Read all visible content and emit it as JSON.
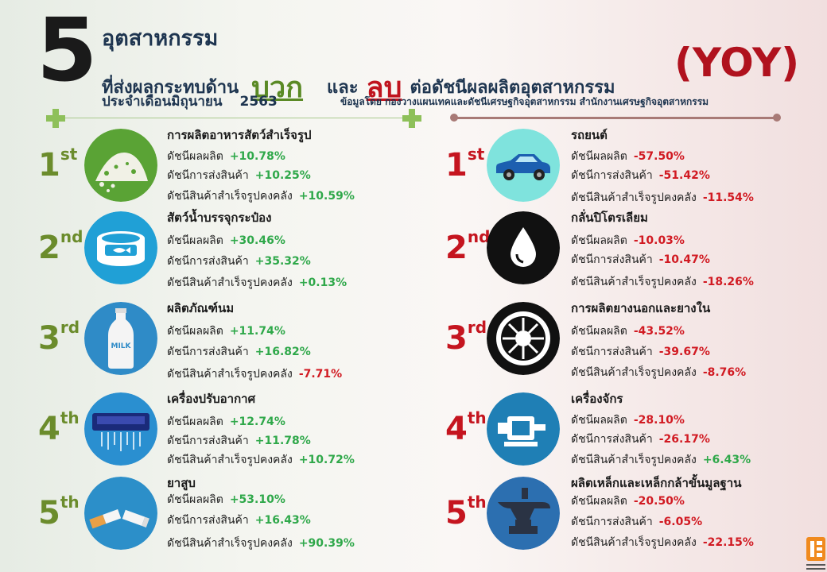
{
  "header": {
    "number": "5",
    "title_line1": "อุตสาหกรรม",
    "title_line2_pre": "ที่ส่งผลกระทบด้าน",
    "positive_word": "บวก",
    "and_word": "และ",
    "negative_word": "ลบ",
    "title_line2_post": "ต่อดัชนีผลผลิตอุตสาหกรรม",
    "month_line": "ประจำเดือนมิถุนายน",
    "year": "2563",
    "yoy": "(YOY)",
    "source": "ข้อมูลโดย  กองวางแผนเทคและดัชนีเศรษฐกิจอุตสาหกรรม สำนักงานเศรษฐกิจอุตสาหกรรม"
  },
  "positive": [
    {
      "rank": "1",
      "suffix": "st",
      "icon": "powder-food-icon",
      "title": "การผลิตอาหารสัตว์สำเร็จรูป",
      "lines": [
        {
          "label": "ดัชนีผลผลิต",
          "value": "+10.78%"
        },
        {
          "label": "ดัชนีการส่งสินค้า",
          "value": "+10.25%"
        },
        {
          "label": "ดัชนีสินค้าสำเร็จรูปคงคลัง",
          "value": "+10.59%"
        }
      ]
    },
    {
      "rank": "2",
      "suffix": "nd",
      "icon": "canned-fish-icon",
      "title": "สัตว์น้ำบรรจุกระป๋อง",
      "lines": [
        {
          "label": "ดัชนีผลผลิต",
          "value": "+30.46%"
        },
        {
          "label": "ดัชนีการส่งสินค้า",
          "value": "+35.32%"
        },
        {
          "label": "ดัชนีสินค้าสำเร็จรูปคงคลัง",
          "value": "+0.13%"
        }
      ]
    },
    {
      "rank": "3",
      "suffix": "rd",
      "icon": "milk-bottle-icon",
      "title": "ผลิตภัณฑ์นม",
      "lines": [
        {
          "label": "ดัชนีผลผลิต",
          "value": "+11.74%"
        },
        {
          "label": "ดัชนีการส่งสินค้า",
          "value": "+16.82%"
        },
        {
          "label": "ดัชนีสินค้าสำเร็จรูปคงคลัง",
          "value": "-7.71%"
        }
      ]
    },
    {
      "rank": "4",
      "suffix": "th",
      "icon": "air-conditioner-icon",
      "title": "เครื่องปรับอากาศ",
      "lines": [
        {
          "label": "ดัชนีผลผลิต",
          "value": "+12.74%"
        },
        {
          "label": "ดัชนีการส่งสินค้า",
          "value": "+11.78%"
        },
        {
          "label": "ดัชนีสินค้าสำเร็จรูปคงคลัง",
          "value": "+10.72%"
        }
      ]
    },
    {
      "rank": "5",
      "suffix": "th",
      "icon": "cigarette-icon",
      "title": "ยาสูบ",
      "lines": [
        {
          "label": "ดัชนีผลผลิต",
          "value": "+53.10%"
        },
        {
          "label": "ดัชนีการส่งสินค้า",
          "value": "+16.43%"
        },
        {
          "label": "ดัชนีสินค้าสำเร็จรูปคงคลัง",
          "value": "+90.39%"
        }
      ]
    }
  ],
  "negative": [
    {
      "rank": "1",
      "suffix": "st",
      "icon": "car-icon",
      "title": "รถยนต์",
      "lines": [
        {
          "label": "ดัชนีผลผลิต",
          "value": "-57.50%"
        },
        {
          "label": "ดัชนีการส่งสินค้า",
          "value": "-51.42%"
        },
        {
          "label": "ดัชนีสินค้าสำเร็จรูปคงคลัง",
          "value": "-11.54%"
        }
      ]
    },
    {
      "rank": "2",
      "suffix": "nd",
      "icon": "oil-drop-icon",
      "title": "กลั่นปิโตรเลียม",
      "lines": [
        {
          "label": "ดัชนีผลผลิต",
          "value": "-10.03%"
        },
        {
          "label": "ดัชนีการส่งสินค้า",
          "value": "-10.47%"
        },
        {
          "label": "ดัชนีสินค้าสำเร็จรูปคงคลัง",
          "value": "-18.26%"
        }
      ]
    },
    {
      "rank": "3",
      "suffix": "rd",
      "icon": "tire-icon",
      "title": "การผลิตยางนอกและยางใน",
      "lines": [
        {
          "label": "ดัชนีผลผลิต",
          "value": "-43.52%"
        },
        {
          "label": "ดัชนีการส่งสินค้า",
          "value": "-39.67%"
        },
        {
          "label": "ดัชนีสินค้าสำเร็จรูปคงคลัง",
          "value": "-8.76%"
        }
      ]
    },
    {
      "rank": "4",
      "suffix": "th",
      "icon": "electric-motor-icon",
      "title": "เครื่องจักร",
      "lines": [
        {
          "label": "ดัชนีผลผลิต",
          "value": "-28.10%"
        },
        {
          "label": "ดัชนีการส่งสินค้า",
          "value": "-26.17%"
        },
        {
          "label": "ดัชนีสินค้าสำเร็จรูปคงคลัง",
          "value": "+6.43%"
        }
      ]
    },
    {
      "rank": "5",
      "suffix": "th",
      "icon": "anvil-icon",
      "title": "ผลิตเหล็กและเหล็กกล้าขั้นมูลฐาน",
      "lines": [
        {
          "label": "ดัชนีผลผลิต",
          "value": "-20.50%"
        },
        {
          "label": "ดัชนีการส่งสินค้า",
          "value": "-6.05%"
        },
        {
          "label": "ดัชนีสินค้าสำเร็จรูปคงคลัง",
          "value": "-22.15%"
        }
      ]
    }
  ],
  "colors": {
    "positive": "#2fa84a",
    "negative": "#d11a22",
    "rank_positive": "#6b8c2c",
    "rank_negative": "#c5151f"
  }
}
